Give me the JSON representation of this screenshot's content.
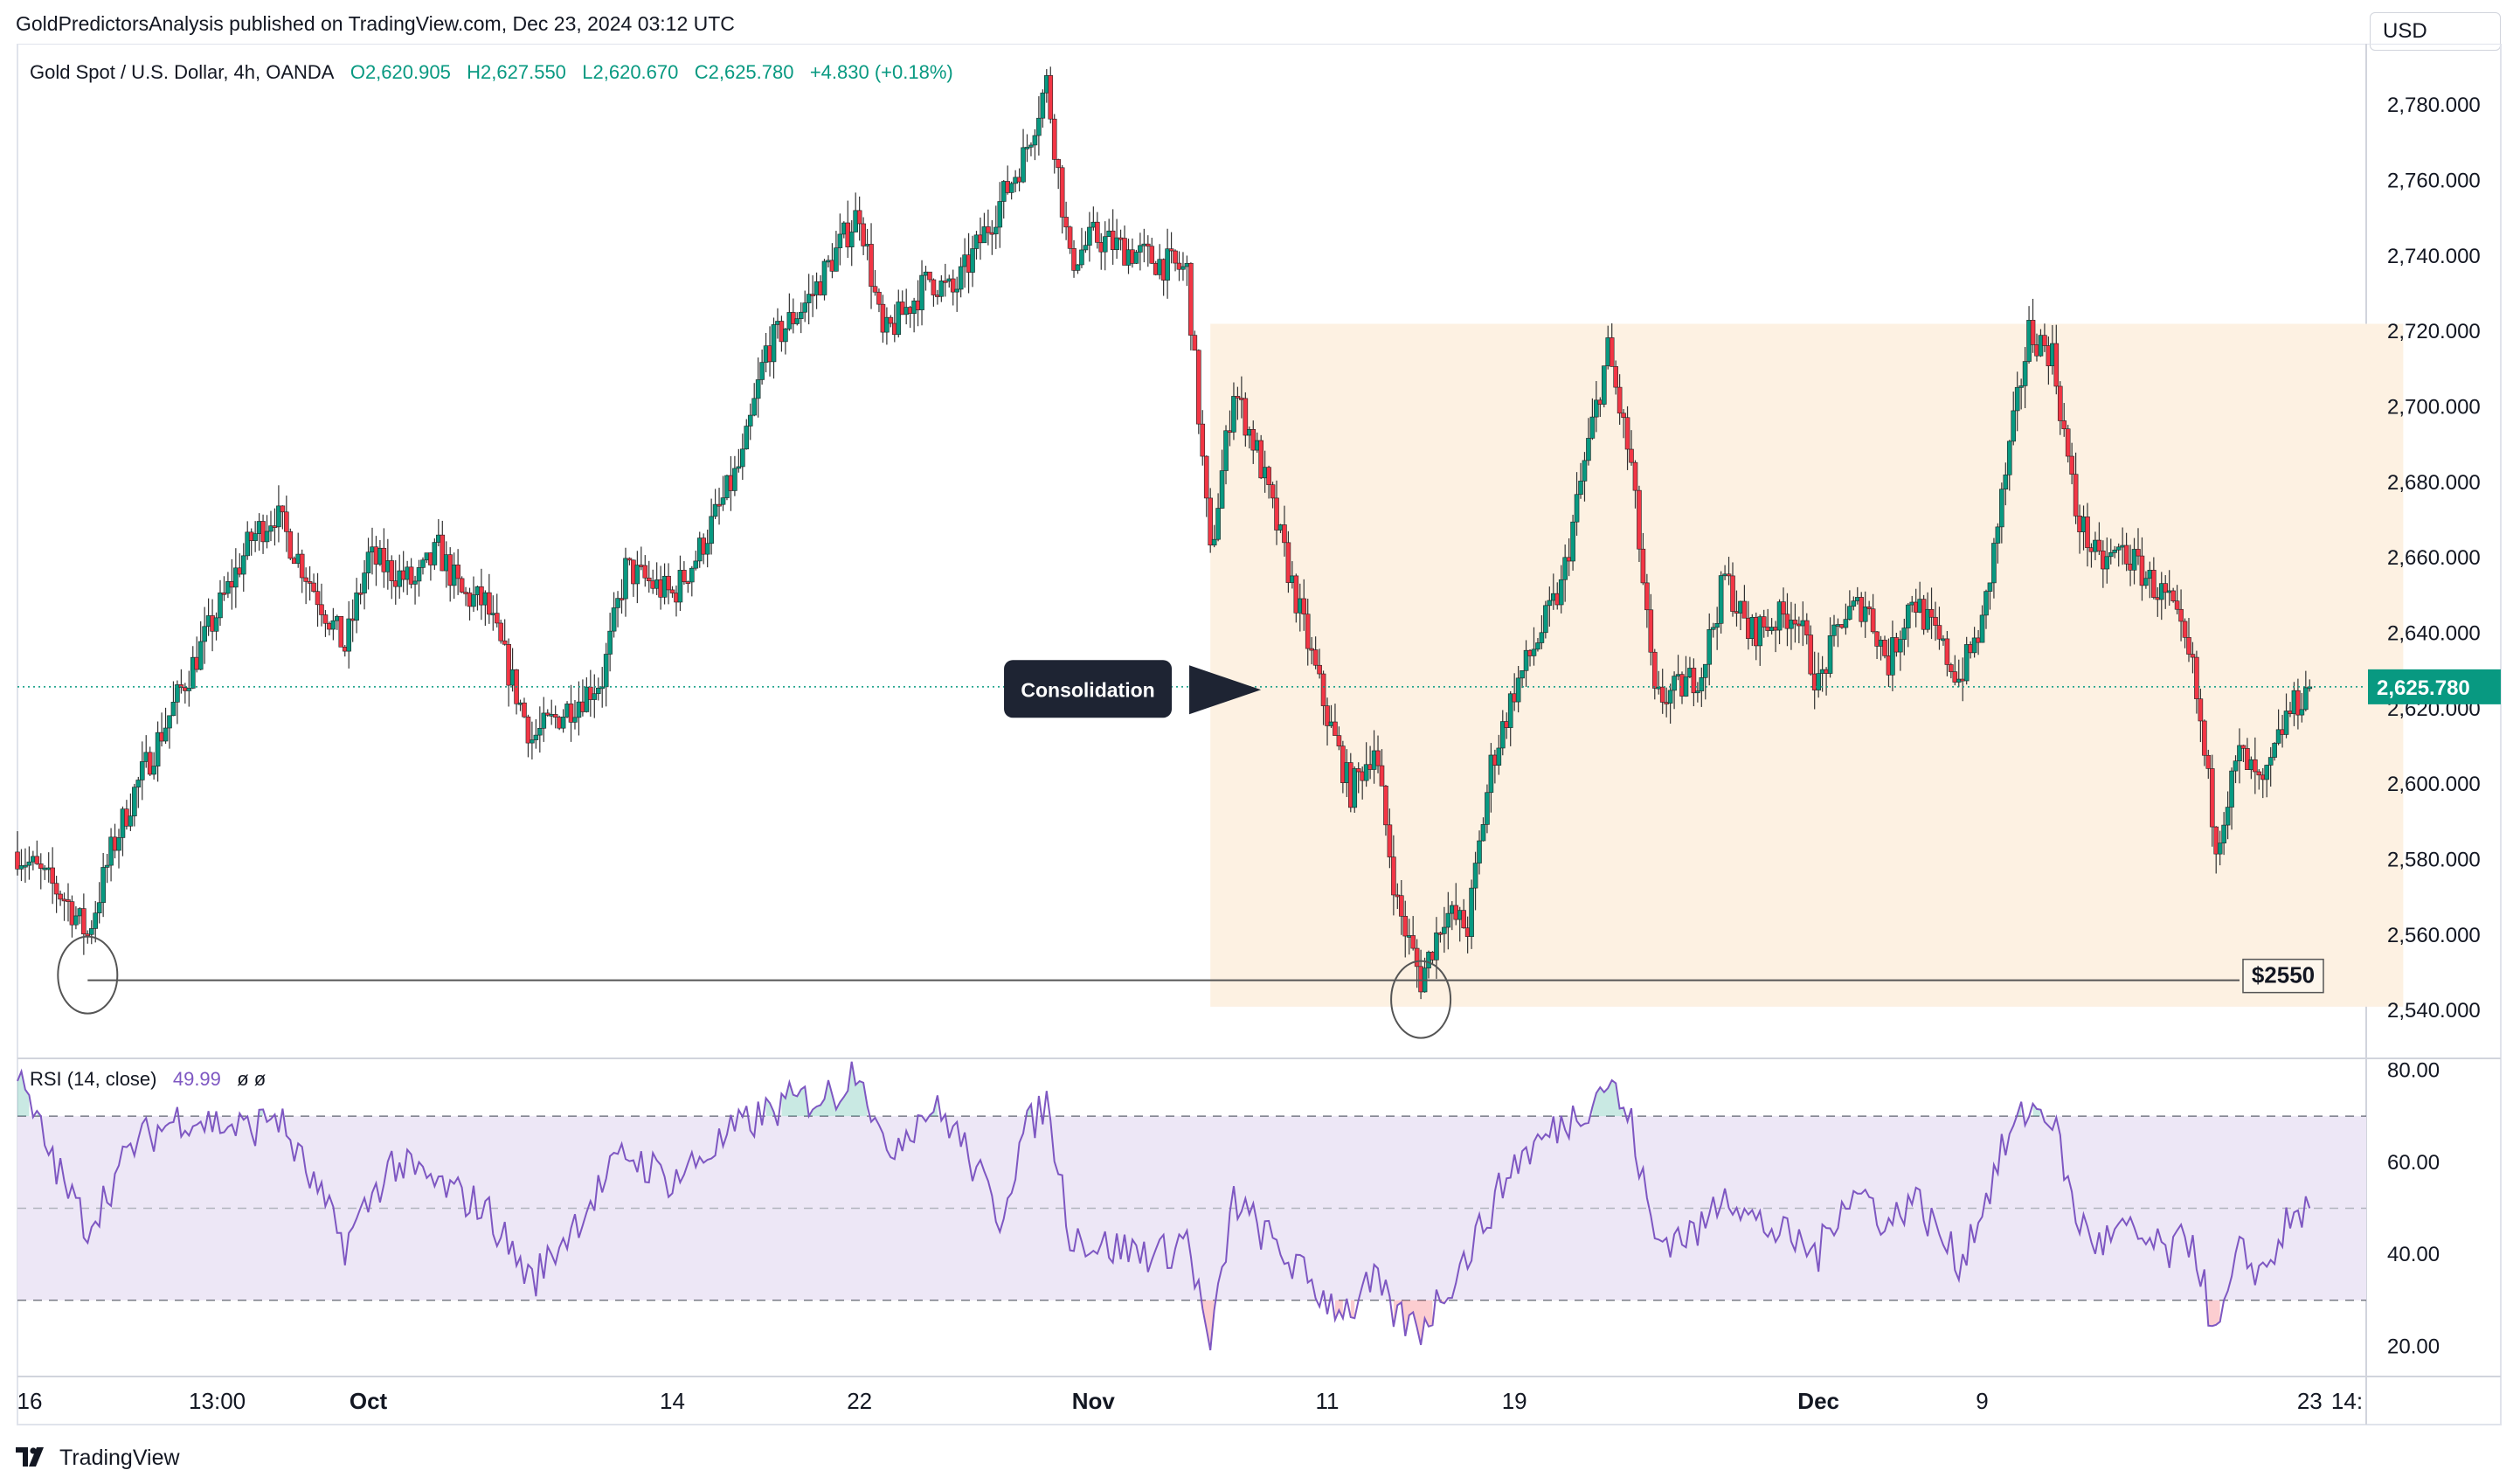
{
  "publisher": "GoldPredictorsAnalysis published on TradingView.com, Dec 23, 2024 03:12 UTC",
  "legend": {
    "symbol": "Gold Spot / U.S. Dollar, 4h, OANDA",
    "open": "O2,620.905",
    "high": "H2,627.550",
    "low": "L2,620.670",
    "close": "C2,625.780",
    "change": "+4.830 (+0.18%)"
  },
  "currency": "USD",
  "last_price_label": "2,625.780",
  "annotation": "Consolidation",
  "level_label": "$2550",
  "rsi": {
    "title": "RSI (14, close)",
    "value": "49.99",
    "flags": "ø  ø"
  },
  "footer": {
    "brand": "TradingView"
  },
  "icons": {
    "footer_logo": "tradingview-logo-icon"
  },
  "colors": {
    "up": "#089981",
    "down": "#f23645",
    "rsi_line": "#7e57c2",
    "rsi_band": "#ede7f6",
    "consolidation_box": "#fdf1e2",
    "price_line": "#089981"
  },
  "chart_data": [
    {
      "type": "candlestick",
      "title": "Gold Spot / U.S. Dollar, 4h, OANDA",
      "x_tick_labels": [
        "16",
        "13:00",
        "Oct",
        "14",
        "22",
        "Nov",
        "11",
        "19",
        "Dec",
        "9",
        "23",
        "14:"
      ],
      "y_tick_labels": [
        "2,780.000",
        "2,760.000",
        "2,740.000",
        "2,720.000",
        "2,700.000",
        "2,680.000",
        "2,660.000",
        "2,640.000",
        "2,620.000",
        "2,600.000",
        "2,580.000",
        "2,560.000",
        "2,540.000"
      ],
      "ylim": [
        2528,
        2793
      ],
      "last_price": 2625.78,
      "support_level": 2548,
      "consolidation_box": {
        "x_start": "Nov 6",
        "x_end": "Dec 27",
        "y_low": 2541,
        "y_high": 2722
      },
      "price_path": [
        [
          "Sep 16",
          2582
        ],
        [
          "Sep 18",
          2570
        ],
        [
          "Sep 19",
          2560
        ],
        [
          "Sep 20",
          2582
        ],
        [
          "Sep 21",
          2598
        ],
        [
          "Sep 23",
          2625
        ],
        [
          "Sep 26",
          2665
        ],
        [
          "Sep 27",
          2672
        ],
        [
          "Sep 30",
          2636
        ],
        [
          "Oct 1",
          2660
        ],
        [
          "Oct 3",
          2653
        ],
        [
          "Oct 4",
          2662
        ],
        [
          "Oct 5",
          2650
        ],
        [
          "Oct 6",
          2648
        ],
        [
          "Oct 8",
          2612
        ],
        [
          "Oct 11",
          2628
        ],
        [
          "Oct 12",
          2657
        ],
        [
          "Oct 14",
          2650
        ],
        [
          "Oct 15",
          2660
        ],
        [
          "Oct 17",
          2686
        ],
        [
          "Oct 18",
          2715
        ],
        [
          "Oct 20",
          2730
        ],
        [
          "Oct 22",
          2752
        ],
        [
          "Oct 23",
          2718
        ],
        [
          "Oct 25",
          2734
        ],
        [
          "Oct 26",
          2730
        ],
        [
          "Oct 29",
          2766
        ],
        [
          "Oct 30",
          2786
        ],
        [
          "Oct 31",
          2738
        ],
        [
          "Nov 1",
          2745
        ],
        [
          "Nov 4",
          2738
        ],
        [
          "Nov 5",
          2736
        ],
        [
          "Nov 6",
          2660
        ],
        [
          "Nov 7",
          2705
        ],
        [
          "Nov 8",
          2688
        ],
        [
          "Nov 11",
          2618
        ],
        [
          "Nov 12",
          2598
        ],
        [
          "Nov 13",
          2610
        ],
        [
          "Nov 14",
          2568
        ],
        [
          "Nov 15",
          2548
        ],
        [
          "Nov 16",
          2566
        ],
        [
          "Nov 17",
          2562
        ],
        [
          "Nov 18",
          2605
        ],
        [
          "Nov 19",
          2625
        ],
        [
          "Nov 21",
          2652
        ],
        [
          "Nov 22",
          2685
        ],
        [
          "Nov 23",
          2715
        ],
        [
          "Nov 24",
          2684
        ],
        [
          "Nov 25",
          2622
        ],
        [
          "Nov 26",
          2625
        ],
        [
          "Nov 27",
          2630
        ],
        [
          "Nov 28",
          2655
        ],
        [
          "Nov 29",
          2640
        ],
        [
          "Dec 1",
          2646
        ],
        [
          "Dec 2",
          2626
        ],
        [
          "Dec 3",
          2644
        ],
        [
          "Dec 4",
          2648
        ],
        [
          "Dec 5",
          2632
        ],
        [
          "Dec 6",
          2650
        ],
        [
          "Dec 8",
          2628
        ],
        [
          "Dec 9",
          2642
        ],
        [
          "Dec 10",
          2682
        ],
        [
          "Dec 11",
          2720
        ],
        [
          "Dec 12",
          2714
        ],
        [
          "Dec 13",
          2672
        ],
        [
          "Dec 14",
          2658
        ],
        [
          "Dec 15",
          2662
        ],
        [
          "Dec 17",
          2648
        ],
        [
          "Dec 18",
          2630
        ],
        [
          "Dec 19",
          2585
        ],
        [
          "Dec 20",
          2608
        ],
        [
          "Dec 21",
          2598
        ],
        [
          "Dec 22",
          2618
        ],
        [
          "Dec 23",
          2625.78
        ]
      ]
    },
    {
      "type": "line",
      "title": "RSI (14, close)",
      "y_tick_labels": [
        "80.00",
        "60.00",
        "40.00",
        "20.00"
      ],
      "ylim": [
        14,
        82
      ],
      "band": [
        30,
        70
      ],
      "midline": 50,
      "last_value": 49.99,
      "rsi_path": [
        [
          "Sep 16",
          78
        ],
        [
          "Sep 18",
          55
        ],
        [
          "Sep 19",
          46
        ],
        [
          "Sep 21",
          64
        ],
        [
          "Sep 23",
          70
        ],
        [
          "Sep 26",
          67
        ],
        [
          "Sep 27",
          71
        ],
        [
          "Sep 30",
          42
        ],
        [
          "Oct 2",
          60
        ],
        [
          "Oct 4",
          55
        ],
        [
          "Oct 6",
          50
        ],
        [
          "Oct 8",
          34
        ],
        [
          "Oct 11",
          55
        ],
        [
          "Oct 12",
          62
        ],
        [
          "Oct 14",
          56
        ],
        [
          "Oct 17",
          68
        ],
        [
          "Oct 19",
          73
        ],
        [
          "Oct 21",
          75
        ],
        [
          "Oct 22",
          82
        ],
        [
          "Oct 23",
          62
        ],
        [
          "Oct 25",
          72
        ],
        [
          "Oct 26",
          68
        ],
        [
          "Oct 28",
          48
        ],
        [
          "Oct 29",
          66
        ],
        [
          "Oct 30",
          73
        ],
        [
          "Oct 31",
          45
        ],
        [
          "Nov 1",
          42
        ],
        [
          "Nov 4",
          40
        ],
        [
          "Nov 5",
          44
        ],
        [
          "Nov 6",
          19
        ],
        [
          "Nov 7",
          52
        ],
        [
          "Nov 8",
          46
        ],
        [
          "Nov 11",
          30
        ],
        [
          "Nov 12",
          28
        ],
        [
          "Nov 13",
          34
        ],
        [
          "Nov 14",
          26
        ],
        [
          "Nov 15",
          24
        ],
        [
          "Nov 17",
          40
        ],
        [
          "Nov 18",
          50
        ],
        [
          "Nov 19",
          60
        ],
        [
          "Nov 21",
          68
        ],
        [
          "Nov 22",
          72
        ],
        [
          "Nov 23",
          78
        ],
        [
          "Nov 24",
          68
        ],
        [
          "Nov 25",
          43
        ],
        [
          "Nov 27",
          45
        ],
        [
          "Nov 28",
          55
        ],
        [
          "Nov 29",
          48
        ],
        [
          "Dec 2",
          40
        ],
        [
          "Dec 3",
          52
        ],
        [
          "Dec 4",
          53
        ],
        [
          "Dec 5",
          46
        ],
        [
          "Dec 6",
          53
        ],
        [
          "Dec 8",
          38
        ],
        [
          "Dec 9",
          50
        ],
        [
          "Dec 10",
          64
        ],
        [
          "Dec 11",
          72
        ],
        [
          "Dec 12",
          70
        ],
        [
          "Dec 13",
          48
        ],
        [
          "Dec 14",
          42
        ],
        [
          "Dec 15",
          45
        ],
        [
          "Dec 17",
          40
        ],
        [
          "Dec 18",
          44
        ],
        [
          "Dec 19",
          21
        ],
        [
          "Dec 20",
          40
        ],
        [
          "Dec 21",
          36
        ],
        [
          "Dec 22",
          46
        ],
        [
          "Dec 23",
          49.99
        ]
      ]
    }
  ]
}
